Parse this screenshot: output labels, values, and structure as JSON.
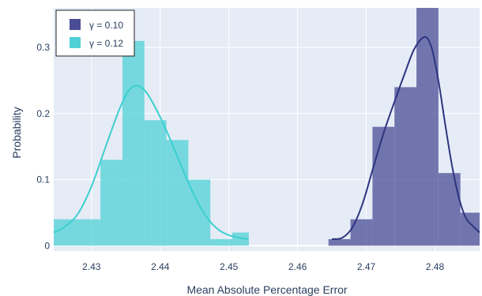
{
  "chart_data": {
    "type": "histogram",
    "xlabel": "Mean Absolute Percentage Error",
    "ylabel": "Probability",
    "xlim": [
      2.4245,
      2.4865
    ],
    "ylim": [
      -0.008,
      0.36
    ],
    "x_ticks": [
      2.43,
      2.44,
      2.45,
      2.46,
      2.47,
      2.48
    ],
    "x_tick_labels": [
      "2.43",
      "2.44",
      "2.45",
      "2.46",
      "2.47",
      "2.48"
    ],
    "y_ticks": [
      0,
      0.1,
      0.2,
      0.3
    ],
    "y_tick_labels": [
      "0",
      "0.1",
      "0.2",
      "0.3"
    ],
    "grid": true,
    "plot_bgcolor": "#e5ecf6",
    "legend": {
      "placement": "top-left"
    },
    "series": [
      {
        "name": "γ = 0.10",
        "color": "#4a4d96",
        "curve_color": "#2d3580",
        "bins": [
          {
            "x0": 2.4645,
            "x1": 2.4677,
            "p": 0.01
          },
          {
            "x0": 2.4677,
            "x1": 2.4709,
            "p": 0.04
          },
          {
            "x0": 2.4709,
            "x1": 2.4741,
            "p": 0.18
          },
          {
            "x0": 2.4741,
            "x1": 2.4773,
            "p": 0.24
          },
          {
            "x0": 2.4773,
            "x1": 2.4805,
            "p": 0.36
          },
          {
            "x0": 2.4805,
            "x1": 2.4837,
            "p": 0.11
          },
          {
            "x0": 2.4837,
            "x1": 2.4865,
            "p": 0.05
          }
        ],
        "curve": [
          [
            2.465,
            0.01
          ],
          [
            2.4665,
            0.012
          ],
          [
            2.468,
            0.028
          ],
          [
            2.4695,
            0.065
          ],
          [
            2.471,
            0.118
          ],
          [
            2.4725,
            0.17
          ],
          [
            2.474,
            0.215
          ],
          [
            2.4755,
            0.258
          ],
          [
            2.477,
            0.298
          ],
          [
            2.4785,
            0.316
          ],
          [
            2.4795,
            0.3
          ],
          [
            2.4805,
            0.25
          ],
          [
            2.4815,
            0.183
          ],
          [
            2.4825,
            0.12
          ],
          [
            2.4835,
            0.072
          ],
          [
            2.4845,
            0.042
          ],
          [
            2.4855,
            0.03
          ],
          [
            2.4865,
            0.02
          ]
        ]
      },
      {
        "name": "γ = 0.12",
        "color": "#4fd1d6",
        "curve_color": "#3ccfcf",
        "bins": [
          {
            "x0": 2.4245,
            "x1": 2.4313,
            "p": 0.04
          },
          {
            "x0": 2.4313,
            "x1": 2.4345,
            "p": 0.13
          },
          {
            "x0": 2.4345,
            "x1": 2.4377,
            "p": 0.31
          },
          {
            "x0": 2.4377,
            "x1": 2.4409,
            "p": 0.19
          },
          {
            "x0": 2.4409,
            "x1": 2.4441,
            "p": 0.16
          },
          {
            "x0": 2.4441,
            "x1": 2.4473,
            "p": 0.1
          },
          {
            "x0": 2.4473,
            "x1": 2.4505,
            "p": 0.01
          },
          {
            "x0": 2.4505,
            "x1": 2.4529,
            "p": 0.02
          }
        ],
        "curve": [
          [
            2.4245,
            0.02
          ],
          [
            2.426,
            0.028
          ],
          [
            2.428,
            0.048
          ],
          [
            2.43,
            0.09
          ],
          [
            2.432,
            0.148
          ],
          [
            2.434,
            0.205
          ],
          [
            2.4355,
            0.236
          ],
          [
            2.4368,
            0.242
          ],
          [
            2.438,
            0.232
          ],
          [
            2.4395,
            0.205
          ],
          [
            2.441,
            0.172
          ],
          [
            2.4425,
            0.135
          ],
          [
            2.444,
            0.098
          ],
          [
            2.4455,
            0.065
          ],
          [
            2.447,
            0.04
          ],
          [
            2.4485,
            0.024
          ],
          [
            2.45,
            0.016
          ],
          [
            2.4515,
            0.012
          ],
          [
            2.4528,
            0.01
          ]
        ]
      }
    ]
  }
}
